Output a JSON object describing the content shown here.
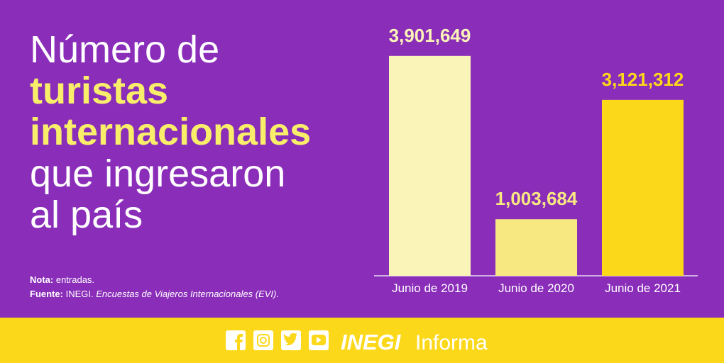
{
  "chart_data": {
    "type": "bar",
    "title": [
      "Número de",
      "turistas",
      "internacionales",
      "que ingresaron",
      "al país"
    ],
    "categories": [
      "Junio de 2019",
      "Junio de 2020",
      "Junio de 2021"
    ],
    "values": [
      3901649,
      1003684,
      3121312
    ],
    "value_labels": [
      "3,901,649",
      "1,003,684",
      "3,121,312"
    ],
    "colors": [
      "#fbf4b8",
      "#f8e882",
      "#fcd81a"
    ],
    "ylim": [
      0,
      4000000
    ]
  },
  "notes": [
    {
      "label": "Nota:",
      "text": "entradas."
    },
    {
      "label": "Fuente:",
      "text": "INEGI.",
      "source": "Encuestas de Viajeros Internacionales (EVI)."
    }
  ],
  "footer": {
    "brand": "INEGI",
    "product": "Informa"
  }
}
